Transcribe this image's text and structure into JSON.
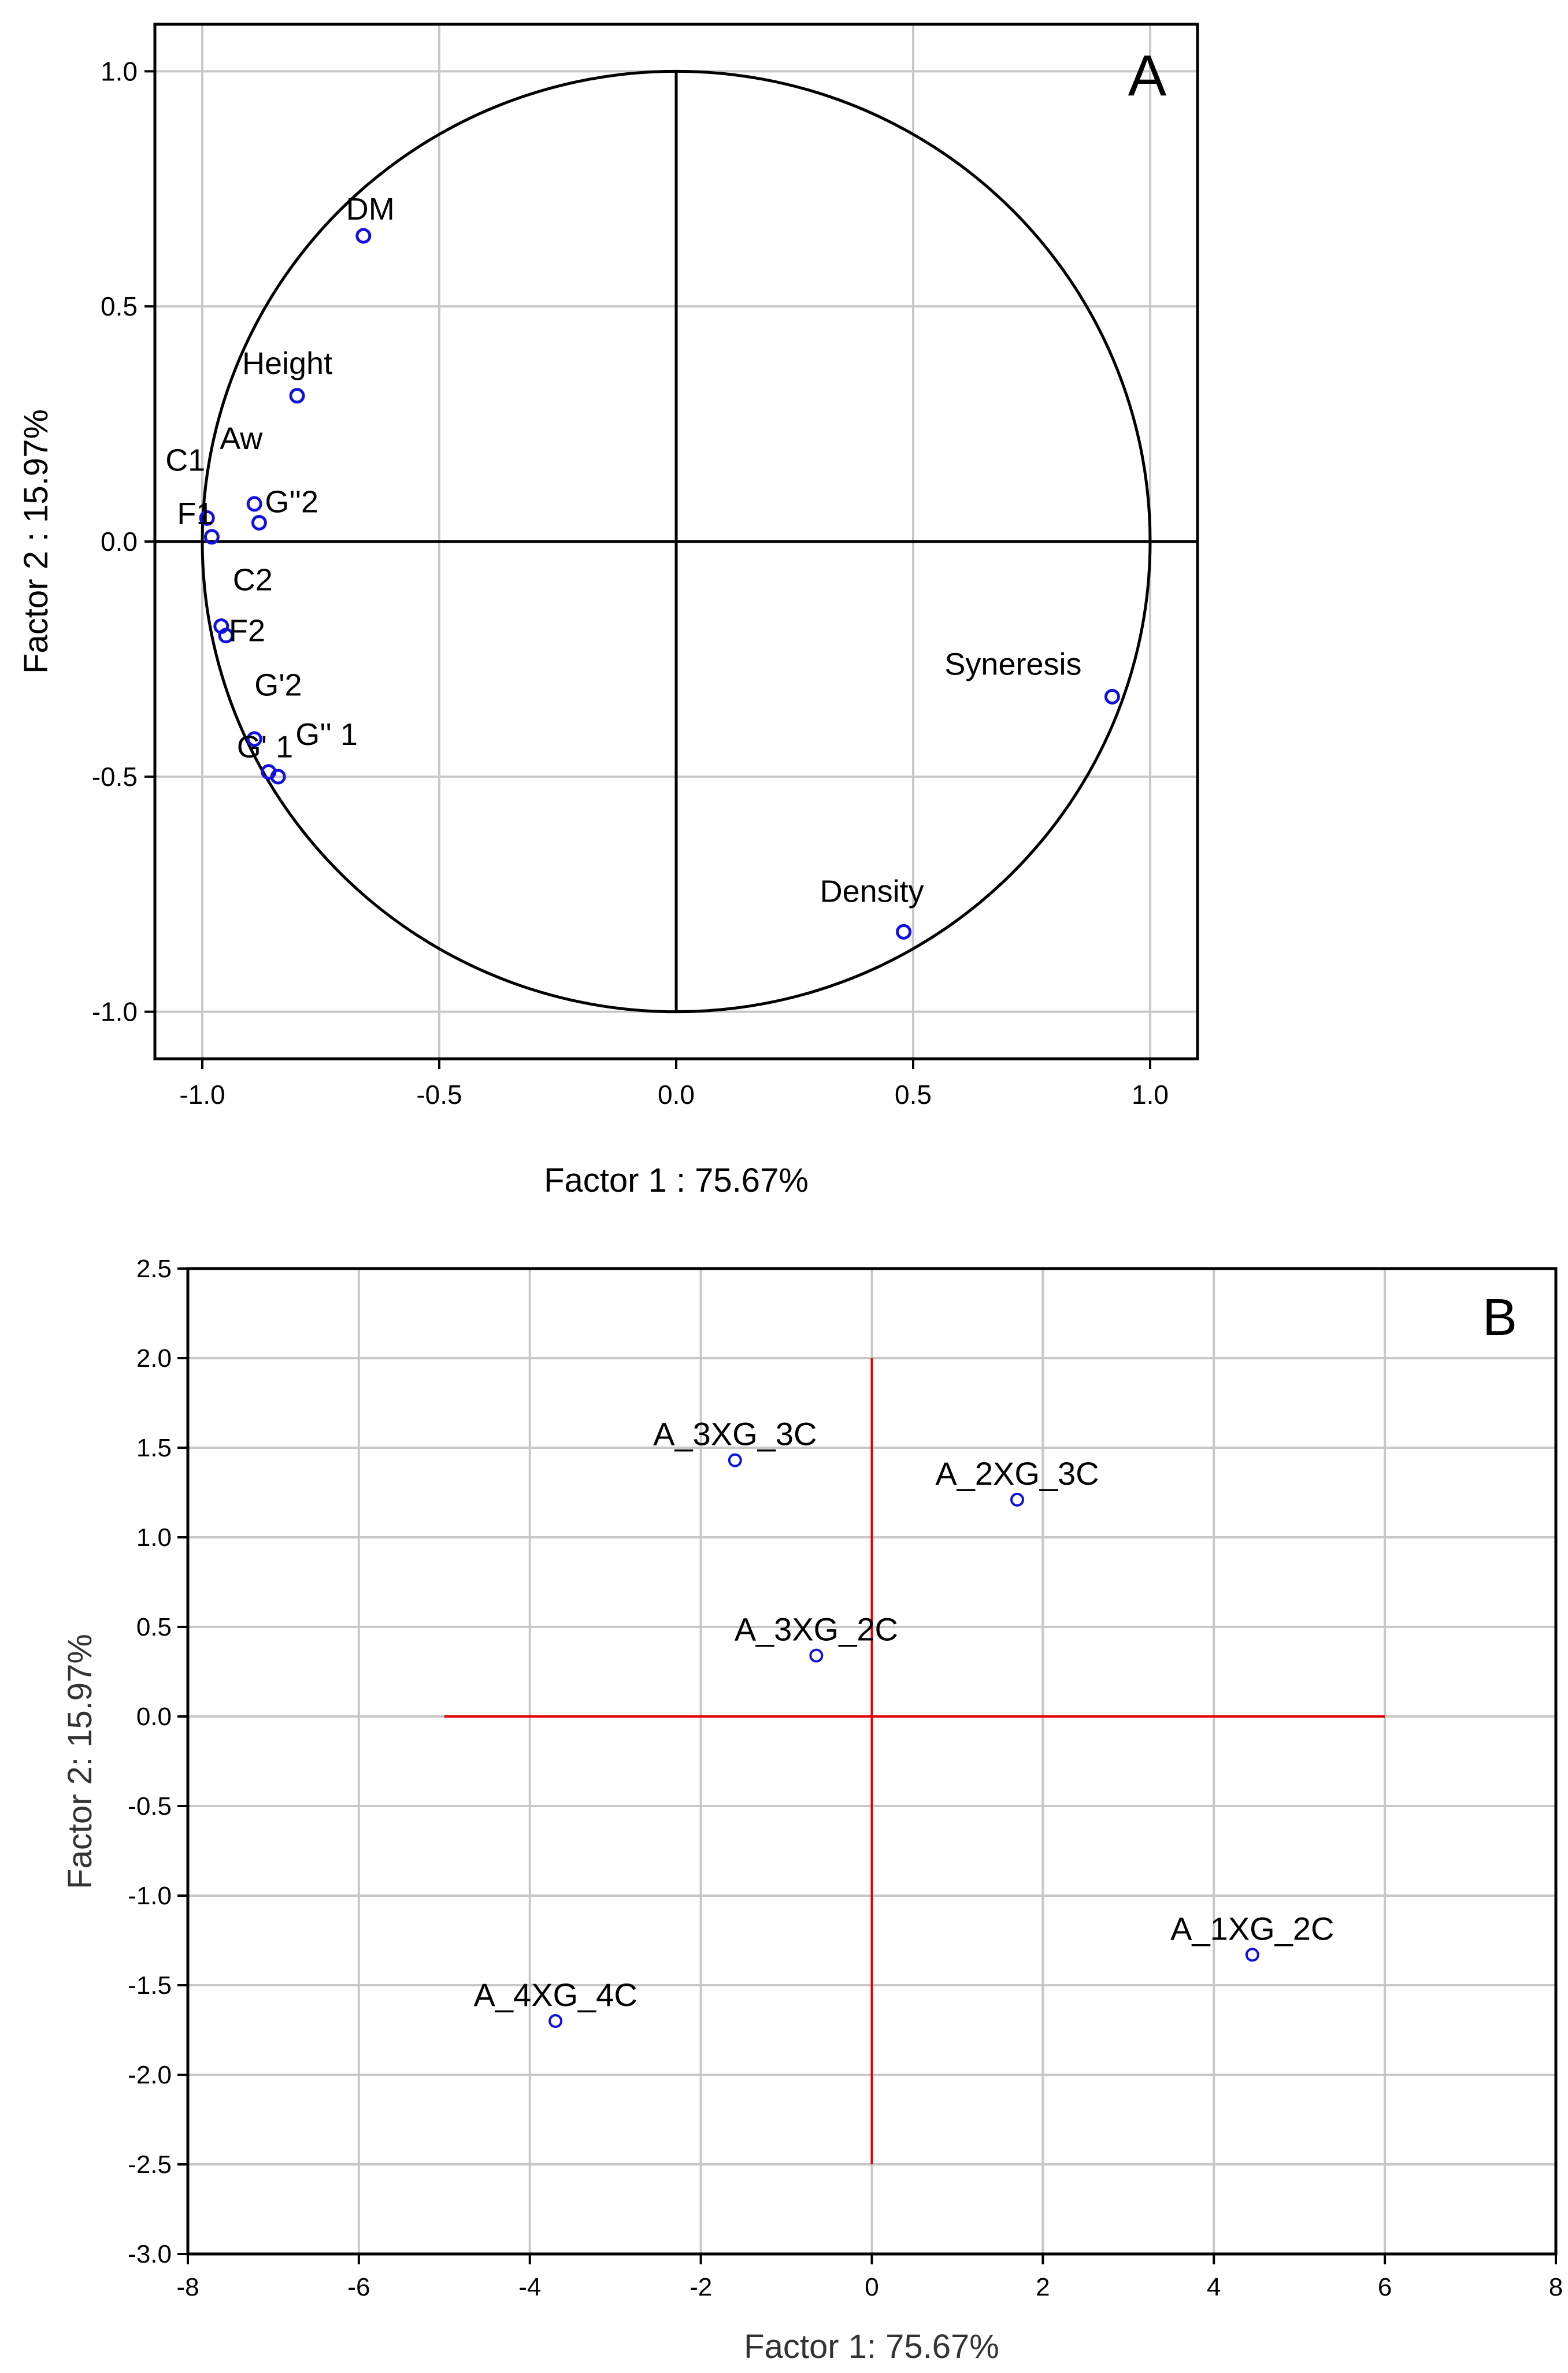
{
  "chart_data": [
    {
      "type": "scatter",
      "panel_label": "A",
      "xlabel": "Factor 1 : 75.67%",
      "ylabel": "Factor 2 : 15.97%",
      "xlim": [
        -1.1,
        1.1
      ],
      "ylim": [
        -1.1,
        1.1
      ],
      "xticks": [
        -1.0,
        -0.5,
        0.0,
        0.5,
        1.0
      ],
      "yticks": [
        -1.0,
        -0.5,
        0.0,
        0.5,
        1.0
      ],
      "xtick_labels": [
        "-1.0",
        "-0.5",
        "0.0",
        "0.5",
        "1.0"
      ],
      "ytick_labels": [
        "-1.0",
        "-0.5",
        "0.0",
        "0.5",
        "1.0"
      ],
      "grid": true,
      "unit_circle": true,
      "colors": {
        "points": "#1010e0",
        "axes": "#000000",
        "grid": "#c8c8c8"
      },
      "points": [
        {
          "label": "DM",
          "x": -0.66,
          "y": 0.65
        },
        {
          "label": "Height",
          "x": -0.8,
          "y": 0.31
        },
        {
          "label": "C1",
          "x": -0.99,
          "y": 0.05
        },
        {
          "label": "F1",
          "x": -0.98,
          "y": 0.01
        },
        {
          "label": "Aw",
          "x": -0.89,
          "y": 0.08
        },
        {
          "label": "G''2",
          "x": -0.88,
          "y": 0.04
        },
        {
          "label": "C2",
          "x": -0.96,
          "y": -0.18
        },
        {
          "label": "F2",
          "x": -0.95,
          "y": -0.2
        },
        {
          "label": "G'2",
          "x": -0.89,
          "y": -0.42
        },
        {
          "label": "G' 1",
          "x": -0.86,
          "y": -0.49
        },
        {
          "label": "G'' 1",
          "x": -0.84,
          "y": -0.5
        },
        {
          "label": "Syneresis",
          "x": 0.92,
          "y": -0.33
        },
        {
          "label": "Density",
          "x": 0.48,
          "y": -0.83
        }
      ]
    },
    {
      "type": "scatter",
      "panel_label": "B",
      "xlabel": "Factor 1: 75.67%",
      "ylabel": "Factor 2: 15.97%",
      "xlim": [
        -8,
        8
      ],
      "ylim": [
        -3.0,
        2.5
      ],
      "xticks": [
        -8,
        -6,
        -4,
        -2,
        0,
        2,
        4,
        6,
        8
      ],
      "yticks": [
        -3.0,
        -2.5,
        -2.0,
        -1.5,
        -1.0,
        -0.5,
        0.0,
        0.5,
        1.0,
        1.5,
        2.0,
        2.5
      ],
      "xtick_labels": [
        "-8",
        "-6",
        "-4",
        "-2",
        "0",
        "2",
        "4",
        "6",
        "8"
      ],
      "ytick_labels": [
        "-3.0",
        "-2.5",
        "-2.0",
        "-1.5",
        "-1.0",
        "-0.5",
        "0.0",
        "0.5",
        "1.0",
        "1.5",
        "2.0",
        "2.5"
      ],
      "grid": true,
      "reference_lines": {
        "horizontal_x_range": [
          -5,
          6
        ],
        "vertical_y_range": [
          -2.5,
          2.0
        ]
      },
      "colors": {
        "points": "#1010e0",
        "reference": "#e00000",
        "axes": "#000000",
        "grid": "#c8c8c8"
      },
      "points": [
        {
          "label": "A_3XG_3C",
          "x": -1.6,
          "y": 1.43
        },
        {
          "label": "A_2XG_3C",
          "x": 1.7,
          "y": 1.21
        },
        {
          "label": "A_3XG_2C",
          "x": -0.65,
          "y": 0.34
        },
        {
          "label": "A_1XG_2C",
          "x": 4.45,
          "y": -1.33
        },
        {
          "label": "A_4XG_4C",
          "x": -3.7,
          "y": -1.7
        }
      ]
    }
  ]
}
